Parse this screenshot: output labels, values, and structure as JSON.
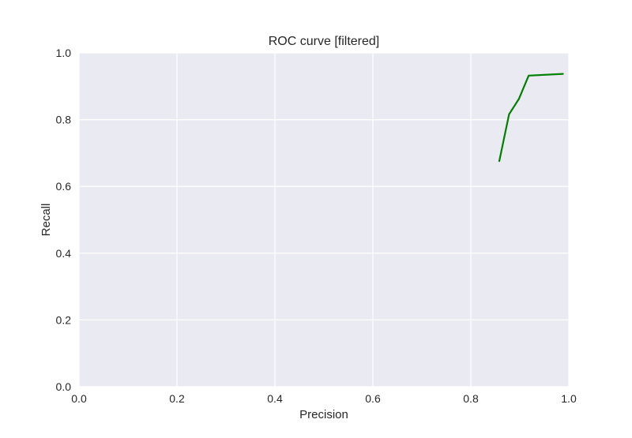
{
  "chart_data": {
    "type": "line",
    "title": "ROC curve [filtered]",
    "xlabel": "Precision",
    "ylabel": "Recall",
    "xlim": [
      0,
      1
    ],
    "ylim": [
      0,
      1
    ],
    "x_ticks": [
      "0.0",
      "0.2",
      "0.4",
      "0.6",
      "0.8",
      "1.0"
    ],
    "y_ticks": [
      "0.0",
      "0.2",
      "0.4",
      "0.6",
      "0.8",
      "1.0"
    ],
    "grid": true,
    "legend": "none",
    "series": [
      {
        "color": "#008000",
        "x": [
          0.858,
          0.878,
          0.898,
          0.918,
          0.988
        ],
        "y": [
          0.676,
          0.816,
          0.862,
          0.932,
          0.937
        ]
      }
    ]
  },
  "colors": {
    "plot_background": "#EAEAF2",
    "grid": "#FFFFFF",
    "text": "#262626",
    "line": "#008000"
  }
}
